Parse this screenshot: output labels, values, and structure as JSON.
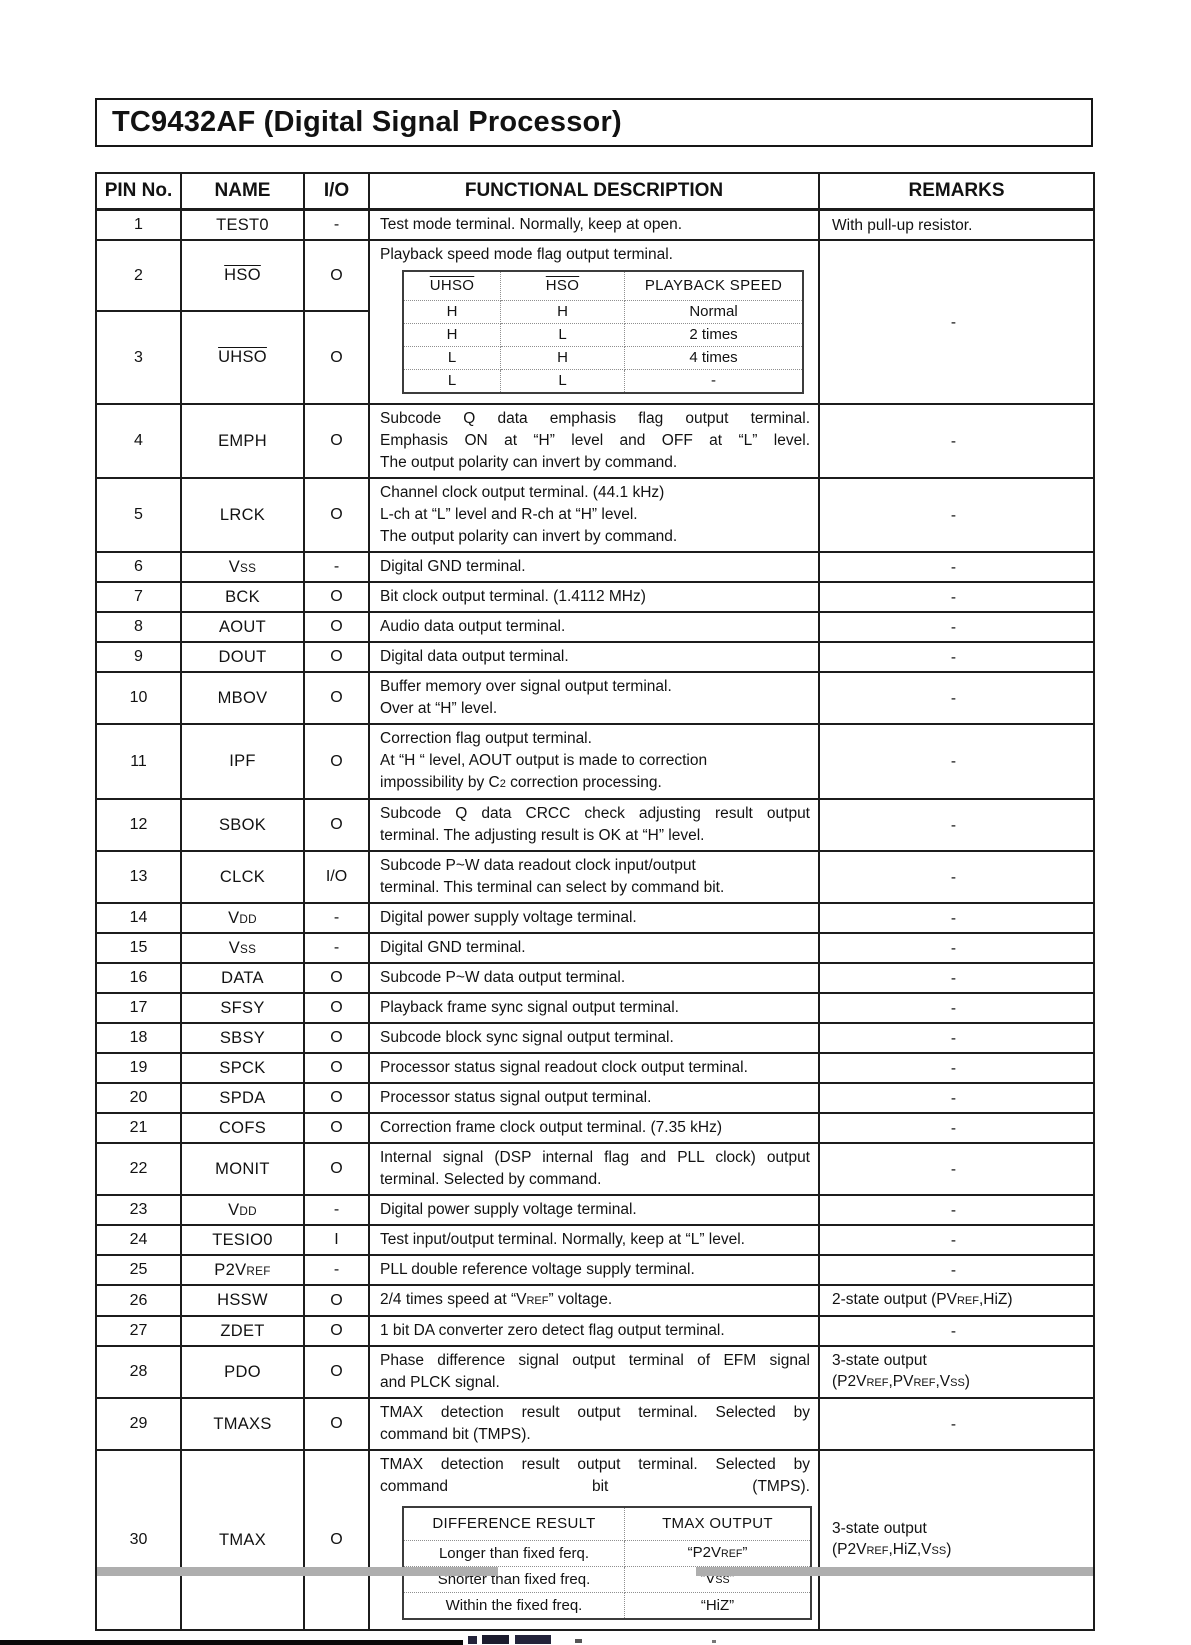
{
  "title": "TC9432AF (Digital Signal Processor)",
  "table": {
    "columns": [
      "PIN No.",
      "NAME",
      "I/O",
      "FUNCTIONAL DESCRIPTION",
      "REMARKS"
    ],
    "rows": [
      {
        "pin": "1",
        "name": "TEST0",
        "io": "-",
        "desc": {
          "lines": [
            "Test mode terminal. Normally, keep at open."
          ]
        },
        "remarks": {
          "lines": [
            "With pull-up resistor."
          ]
        }
      },
      {
        "group": [
          {
            "pin": "2",
            "name": [
              {
                "t": "HSO",
                "over": true
              }
            ],
            "io": "O"
          },
          {
            "pin": "3",
            "name": [
              {
                "t": "UHSO",
                "over": true
              }
            ],
            "io": "O"
          }
        ],
        "desc": {
          "lines": [
            "Playback speed mode flag output terminal."
          ],
          "table": {
            "headers": [
              [
                {
                  "t": "UHSO",
                  "over": true
                }
              ],
              [
                {
                  "t": "HSO",
                  "over": true
                }
              ],
              "PLAYBACK SPEED"
            ],
            "rows": [
              [
                "H",
                "H",
                "Normal"
              ],
              [
                "H",
                "L",
                "2 times"
              ],
              [
                "L",
                "H",
                "4 times"
              ],
              [
                "L",
                "L",
                "-"
              ]
            ]
          }
        },
        "remarks": {
          "lines": [
            "-"
          ]
        }
      },
      {
        "pin": "4",
        "name": "EMPH",
        "io": "O",
        "desc": {
          "justify": true,
          "lines": [
            "Subcode Q data emphasis flag output terminal.",
            "Emphasis ON at “H” level and OFF at “L” level.",
            "The output polarity can invert by command."
          ]
        },
        "remarks": {
          "lines": [
            "-"
          ]
        }
      },
      {
        "pin": "5",
        "name": "LRCK",
        "io": "O",
        "desc": {
          "lines": [
            "Channel clock output terminal. (44.1 kHz)",
            "L-ch at “L” level and R-ch at “H” level.",
            "The output polarity can invert by command."
          ]
        },
        "remarks": {
          "lines": [
            "-"
          ]
        }
      },
      {
        "pin": "6",
        "name": [
          {
            "t": "V"
          },
          {
            "t": "SS",
            "small": true
          }
        ],
        "io": "-",
        "desc": {
          "lines": [
            "Digital GND terminal."
          ]
        },
        "remarks": {
          "lines": [
            "-"
          ]
        }
      },
      {
        "pin": "7",
        "name": "BCK",
        "io": "O",
        "desc": {
          "lines": [
            "Bit clock output terminal. (1.4112 MHz)"
          ]
        },
        "remarks": {
          "lines": [
            "-"
          ]
        }
      },
      {
        "pin": "8",
        "name": "AOUT",
        "io": "O",
        "desc": {
          "lines": [
            "Audio data output terminal."
          ]
        },
        "remarks": {
          "lines": [
            "-"
          ]
        }
      },
      {
        "pin": "9",
        "name": "DOUT",
        "io": "O",
        "desc": {
          "lines": [
            "Digital data output terminal."
          ]
        },
        "remarks": {
          "lines": [
            "-"
          ]
        }
      },
      {
        "pin": "10",
        "name": "MBOV",
        "io": "O",
        "desc": {
          "lines": [
            "Buffer memory over signal output terminal.",
            "Over at “H” level."
          ]
        },
        "remarks": {
          "lines": [
            "-"
          ]
        }
      },
      {
        "pin": "11",
        "name": "IPF",
        "io": "O",
        "desc": {
          "lines": [
            "Correction flag output terminal.",
            "At “H “ level, AOUT output is made to correction",
            [
              {
                "t": "impossibility by C"
              },
              {
                "t": "2",
                "small": true
              },
              {
                "t": " correction processing."
              }
            ]
          ]
        },
        "remarks": {
          "lines": [
            "-"
          ]
        }
      },
      {
        "pin": "12",
        "name": "SBOK",
        "io": "O",
        "desc": {
          "justify": true,
          "lines": [
            "Subcode Q data CRCC check adjusting result output",
            "terminal. The adjusting result is OK at “H” level."
          ]
        },
        "remarks": {
          "lines": [
            "-"
          ]
        }
      },
      {
        "pin": "13",
        "name": "CLCK",
        "io": "I/O",
        "desc": {
          "lines": [
            "Subcode P~W data readout clock input/output",
            "terminal. This terminal can select by command bit."
          ]
        },
        "remarks": {
          "lines": [
            "-"
          ]
        }
      },
      {
        "pin": "14",
        "name": [
          {
            "t": "V"
          },
          {
            "t": "DD",
            "small": true
          }
        ],
        "io": "-",
        "desc": {
          "lines": [
            "Digital power supply voltage terminal."
          ]
        },
        "remarks": {
          "lines": [
            "-"
          ]
        }
      },
      {
        "pin": "15",
        "name": [
          {
            "t": "V"
          },
          {
            "t": "SS",
            "small": true
          }
        ],
        "io": "-",
        "desc": {
          "lines": [
            "Digital GND terminal."
          ]
        },
        "remarks": {
          "lines": [
            "-"
          ]
        }
      },
      {
        "pin": "16",
        "name": "DATA",
        "io": "O",
        "desc": {
          "lines": [
            "Subcode P~W data output terminal."
          ]
        },
        "remarks": {
          "lines": [
            "-"
          ]
        }
      },
      {
        "pin": "17",
        "name": "SFSY",
        "io": "O",
        "desc": {
          "lines": [
            "Playback frame sync signal output terminal."
          ]
        },
        "remarks": {
          "lines": [
            "-"
          ]
        }
      },
      {
        "pin": "18",
        "name": "SBSY",
        "io": "O",
        "desc": {
          "lines": [
            "Subcode block sync signal output terminal."
          ]
        },
        "remarks": {
          "lines": [
            "-"
          ]
        }
      },
      {
        "pin": "19",
        "name": "SPCK",
        "io": "O",
        "desc": {
          "lines": [
            "Processor status signal readout clock output terminal."
          ]
        },
        "remarks": {
          "lines": [
            "-"
          ]
        }
      },
      {
        "pin": "20",
        "name": "SPDA",
        "io": "O",
        "desc": {
          "lines": [
            "Processor status signal output terminal."
          ]
        },
        "remarks": {
          "lines": [
            "-"
          ]
        }
      },
      {
        "pin": "21",
        "name": "COFS",
        "io": "O",
        "desc": {
          "lines": [
            "Correction frame clock output terminal. (7.35 kHz)"
          ]
        },
        "remarks": {
          "lines": [
            "-"
          ]
        }
      },
      {
        "pin": "22",
        "name": "MONIT",
        "io": "O",
        "desc": {
          "justify": true,
          "lines": [
            "Internal signal (DSP internal flag and PLL clock) output",
            "terminal. Selected by command."
          ]
        },
        "remarks": {
          "lines": [
            "-"
          ]
        }
      },
      {
        "pin": "23",
        "name": [
          {
            "t": "V"
          },
          {
            "t": "DD",
            "small": true
          }
        ],
        "io": "-",
        "desc": {
          "lines": [
            "Digital power supply voltage terminal."
          ]
        },
        "remarks": {
          "lines": [
            "-"
          ]
        }
      },
      {
        "pin": "24",
        "name": "TESIO0",
        "io": "I",
        "desc": {
          "lines": [
            "Test input/output terminal. Normally, keep at “L” level."
          ]
        },
        "remarks": {
          "lines": [
            "-"
          ]
        }
      },
      {
        "pin": "25",
        "name": [
          {
            "t": "P2V"
          },
          {
            "t": "REF",
            "small": true
          }
        ],
        "io": "-",
        "desc": {
          "lines": [
            "PLL double reference voltage supply terminal."
          ]
        },
        "remarks": {
          "lines": [
            "-"
          ]
        }
      },
      {
        "pin": "26",
        "name": "HSSW",
        "io": "O",
        "desc": {
          "lines": [
            [
              {
                "t": "2/4 times speed at “V"
              },
              {
                "t": "REF",
                "small": true
              },
              {
                "t": "” voltage."
              }
            ]
          ]
        },
        "remarks": {
          "lines": [
            [
              {
                "t": "2-state output (PV"
              },
              {
                "t": "REF",
                "small": true
              },
              {
                "t": ",HiZ)"
              }
            ]
          ]
        }
      },
      {
        "pin": "27",
        "name": "ZDET",
        "io": "O",
        "desc": {
          "lines": [
            "1 bit DA converter zero detect flag output terminal."
          ]
        },
        "remarks": {
          "lines": [
            "-"
          ]
        }
      },
      {
        "pin": "28",
        "name": "PDO",
        "io": "O",
        "desc": {
          "justify": true,
          "lines": [
            "Phase difference signal output terminal of EFM signal",
            "and PLCK signal."
          ]
        },
        "remarks": {
          "lines": [
            "3-state output",
            [
              {
                "t": "(P2V"
              },
              {
                "t": "REF",
                "small": true
              },
              {
                "t": ",PV"
              },
              {
                "t": "REF",
                "small": true
              },
              {
                "t": ",V"
              },
              {
                "t": "SS",
                "small": true
              },
              {
                "t": ")"
              }
            ]
          ]
        }
      },
      {
        "pin": "29",
        "name": "TMAXS",
        "io": "O",
        "desc": {
          "justify": true,
          "lines": [
            "TMAX detection result output terminal. Selected by",
            "command bit (TMPS)."
          ]
        },
        "remarks": {
          "lines": [
            "-"
          ]
        }
      },
      {
        "pin": "30",
        "name": "TMAX",
        "io": "O",
        "desc": {
          "justify": true,
          "lines": [
            "TMAX detection result output terminal. Selected by",
            "command bit (TMPS)."
          ],
          "table": {
            "headers": [
              "DIFFERENCE RESULT",
              "TMAX OUTPUT"
            ],
            "rows": [
              [
                "Longer than fixed ferq.",
                [
                  {
                    "t": "“P2V"
                  },
                  {
                    "t": "REF",
                    "small": true
                  },
                  {
                    "t": "”"
                  }
                ]
              ],
              [
                "Shorter than fixed freq.",
                [
                  {
                    "t": "“V"
                  },
                  {
                    "t": "SS",
                    "small": true
                  },
                  {
                    "t": "”"
                  }
                ]
              ],
              [
                "Within the fixed freq.",
                "“HiZ”"
              ]
            ]
          }
        },
        "remarks": {
          "lines": [
            "3-state output",
            [
              {
                "t": "(P2V"
              },
              {
                "t": "REF",
                "small": true
              },
              {
                "t": ",HiZ,V"
              },
              {
                "t": "SS",
                "small": true
              },
              {
                "t": ")"
              }
            ]
          ]
        }
      }
    ]
  }
}
